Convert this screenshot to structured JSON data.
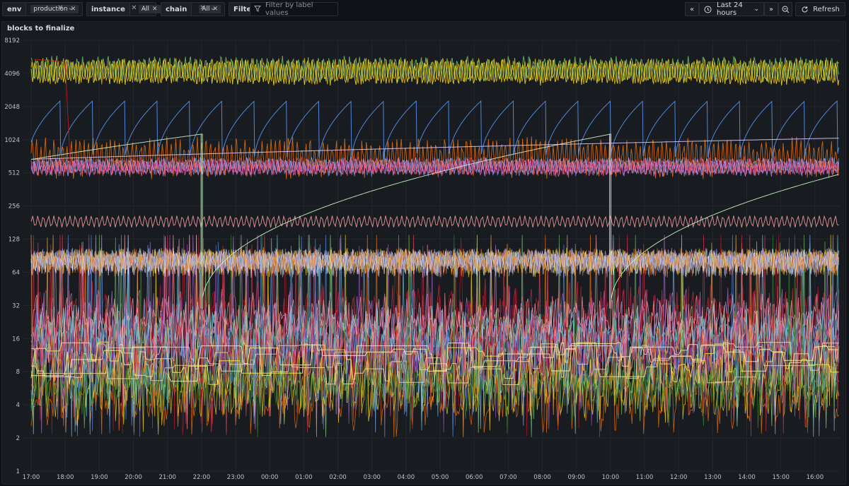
{
  "variables": {
    "env": {
      "label": "env",
      "value": "production"
    },
    "instance": {
      "label": "instance",
      "value": "All"
    },
    "chain": {
      "label": "chain",
      "value": "All"
    },
    "filters": {
      "label": "Filters",
      "placeholder": "Filter by label values"
    }
  },
  "toolbar": {
    "time_range": "Last 24 hours",
    "refresh_label": "Refresh"
  },
  "icons": [
    "close-icon",
    "chevron-down-icon",
    "filter-icon",
    "clock-icon",
    "chevrons-left-icon",
    "chevrons-right-icon",
    "zoom-out-icon",
    "refresh-icon"
  ],
  "panel": {
    "title": "blocks to finalize"
  },
  "chart_data": {
    "type": "line",
    "title": "blocks to finalize",
    "xlabel": "",
    "ylabel": "",
    "yscale": "log2",
    "ylim": [
      1,
      8192
    ],
    "y_ticks": [
      "1",
      "2",
      "4",
      "8",
      "16",
      "32",
      "64",
      "128",
      "256",
      "512",
      "1024",
      "2048",
      "4096",
      "8192"
    ],
    "x_ticks": [
      "17:00",
      "18:00",
      "19:00",
      "20:00",
      "21:00",
      "22:00",
      "23:00",
      "00:00",
      "01:00",
      "02:00",
      "03:00",
      "04:00",
      "05:00",
      "06:00",
      "07:00",
      "08:00",
      "09:00",
      "10:00",
      "11:00",
      "12:00",
      "13:00",
      "14:00",
      "15:00",
      "16:00"
    ],
    "x_range_hours": [
      -0.25,
      23.75
    ],
    "grid": true,
    "legend": "none",
    "series_approx": [
      {
        "color": "#e0b400",
        "approx_level": 4500,
        "pattern": "noisy band 3000-6000"
      },
      {
        "color": "#8ab8ff",
        "approx_level": 1300,
        "pattern": "sawtooth 650-2300, period ~0.9h"
      },
      {
        "color": "#c8f2c2",
        "approx_level": 700,
        "pattern": "slow sawtooth 30-1200, resets at 22:00 and 10:00"
      },
      {
        "color": "#ff780a",
        "approx_level": 800,
        "pattern": "noisy band 450-1100"
      },
      {
        "color": "#cfa8ff",
        "approx_level": 600,
        "pattern": "noisy band 500-700"
      },
      {
        "color": "#f2495c",
        "approx_level": 600,
        "pattern": "noisy band 500-700"
      },
      {
        "color": "#ffa6b0",
        "approx_level": 180,
        "pattern": "oscillation 160-210"
      },
      {
        "color": "#fade2a",
        "approx_level": 80,
        "pattern": "dense band 65-110"
      },
      {
        "color": "#c4162a",
        "approx_level": 30,
        "pattern": "dense oscillation 4-128"
      },
      {
        "color": "#73bf69",
        "approx_level": 12,
        "pattern": "dense oscillation 5-32"
      },
      {
        "color": "#ffee52",
        "approx_level": 8,
        "pattern": "step levels ~7-14"
      }
    ]
  }
}
